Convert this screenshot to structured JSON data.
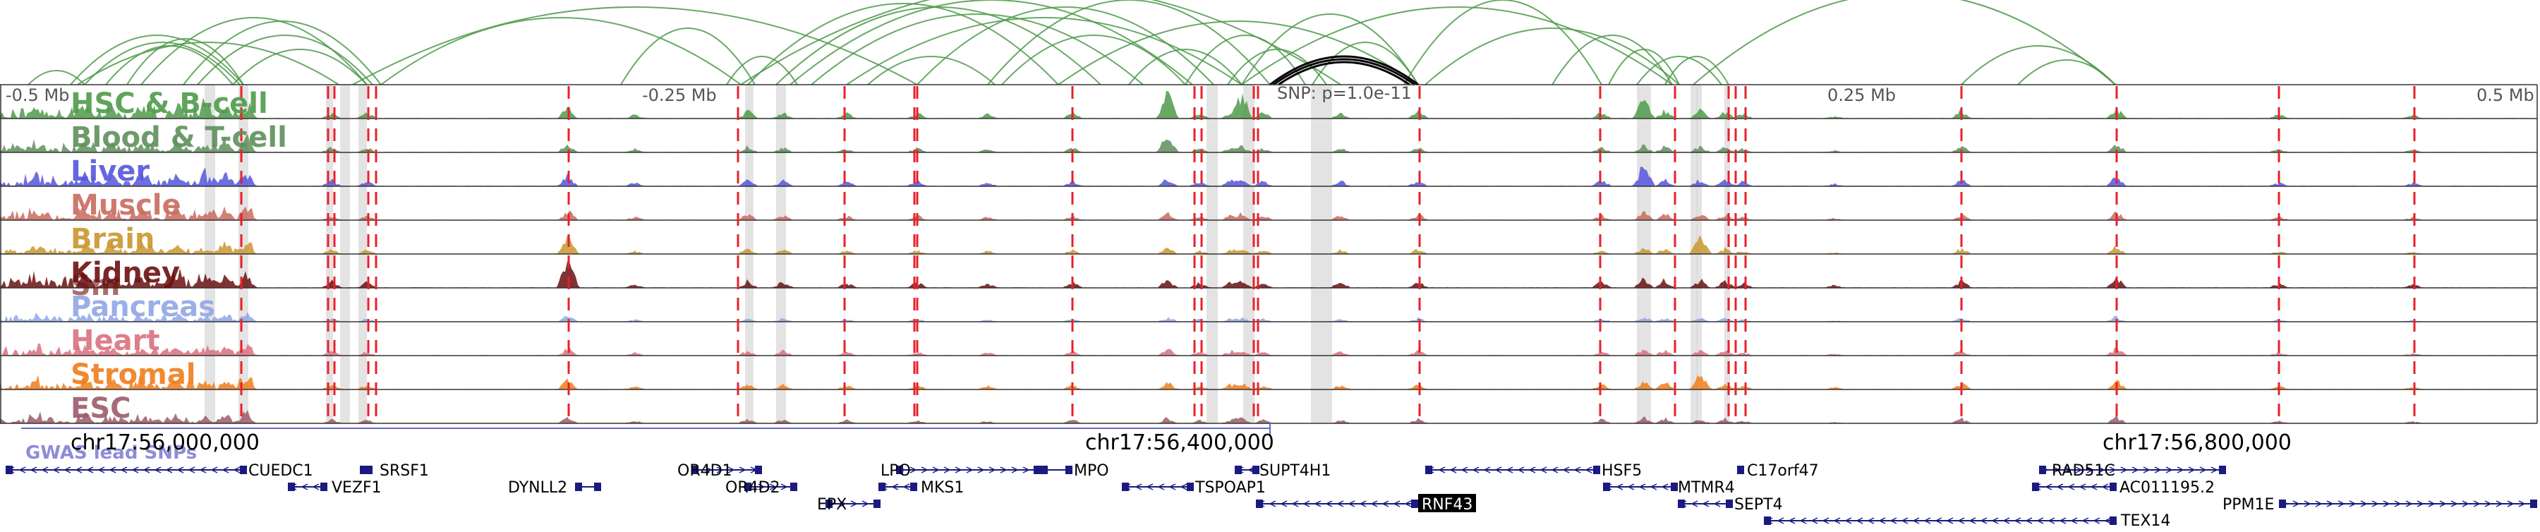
{
  "axis_labels": [
    "-0.5 Mb",
    "-0.25 Mb",
    "0.25 Mb",
    "0.5 Mb"
  ],
  "snp_label": "SNP: p=1.0e-11",
  "tracks": [
    {
      "name": "HSC & B-cell",
      "color": "#4f9a4a"
    },
    {
      "name": "Blood & T-cell",
      "color": "#5e8f5a"
    },
    {
      "name": "Liver",
      "color": "#5555dd"
    },
    {
      "name": "Muscle",
      "color": "#c96a5e"
    },
    {
      "name": "Brain",
      "color": "#c9962e"
    },
    {
      "name": "Kidney",
      "color": "#6b0f0f"
    },
    {
      "name": "Pancreas",
      "color": "#8fa6e6"
    },
    {
      "name": "Heart",
      "color": "#d9707e"
    },
    {
      "name": "Stromal",
      "color": "#f07c1a"
    },
    {
      "name": "ESC",
      "color": "#9b5a6a"
    }
  ],
  "overlap_label": "Sm",
  "gwas_label": "GWAS lead SNPs",
  "coordinates": [
    "chr17:56,000,000",
    "chr17:56,400,000",
    "chr17:56,800,000"
  ],
  "highlighted_gene": "RNF43",
  "genes": [
    "CUEDC1",
    "SRSF1",
    "VEZF1",
    "DYNLL2",
    "OR4D1",
    "OR4D2",
    "EPX",
    "LPO",
    "MKS1",
    "MPO",
    "TSPOAP1",
    "SUPT4H1",
    "RNF43",
    "HSF5",
    "MTMR4",
    "SEPT4",
    "C17orf47",
    "RAD51C",
    "AC011195.2",
    "TEX14",
    "PPM1E"
  ],
  "colors": {
    "arc": "#4f9a4a",
    "snp_arc": "#000000",
    "gwas_line": "#6666cc",
    "red_line": "#e8202a",
    "gene": "#1a1a80",
    "gray_band": "#d9d9d9"
  }
}
